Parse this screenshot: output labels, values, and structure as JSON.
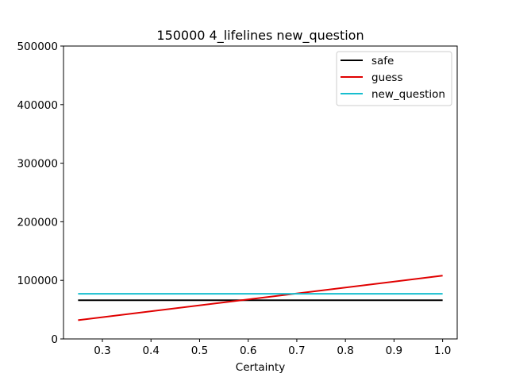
{
  "chart_data": {
    "type": "line",
    "title": "150000 4_lifelines new_question",
    "xlabel": "Certainty",
    "ylabel": "",
    "xlim": [
      0.22,
      1.03
    ],
    "ylim": [
      0,
      500000
    ],
    "xticks": [
      0.3,
      0.4,
      0.5,
      0.6,
      0.7,
      0.8,
      0.9,
      1.0
    ],
    "xtick_labels": [
      "0.3",
      "0.4",
      "0.5",
      "0.6",
      "0.7",
      "0.8",
      "0.9",
      "1.0"
    ],
    "yticks": [
      0,
      100000,
      200000,
      300000,
      400000,
      500000
    ],
    "ytick_labels": [
      "0",
      "100000",
      "200000",
      "300000",
      "400000",
      "500000"
    ],
    "grid": false,
    "legend_placement": "top-right",
    "series": [
      {
        "name": "safe",
        "color": "#000000",
        "x": [
          0.25,
          1.0
        ],
        "y": [
          66000,
          66000
        ]
      },
      {
        "name": "guess",
        "color": "#e00000",
        "x": [
          0.25,
          1.0
        ],
        "y": [
          32000,
          108000
        ]
      },
      {
        "name": "new_question",
        "color": "#17becf",
        "x": [
          0.25,
          1.0
        ],
        "y": [
          77000,
          77000
        ]
      }
    ]
  }
}
